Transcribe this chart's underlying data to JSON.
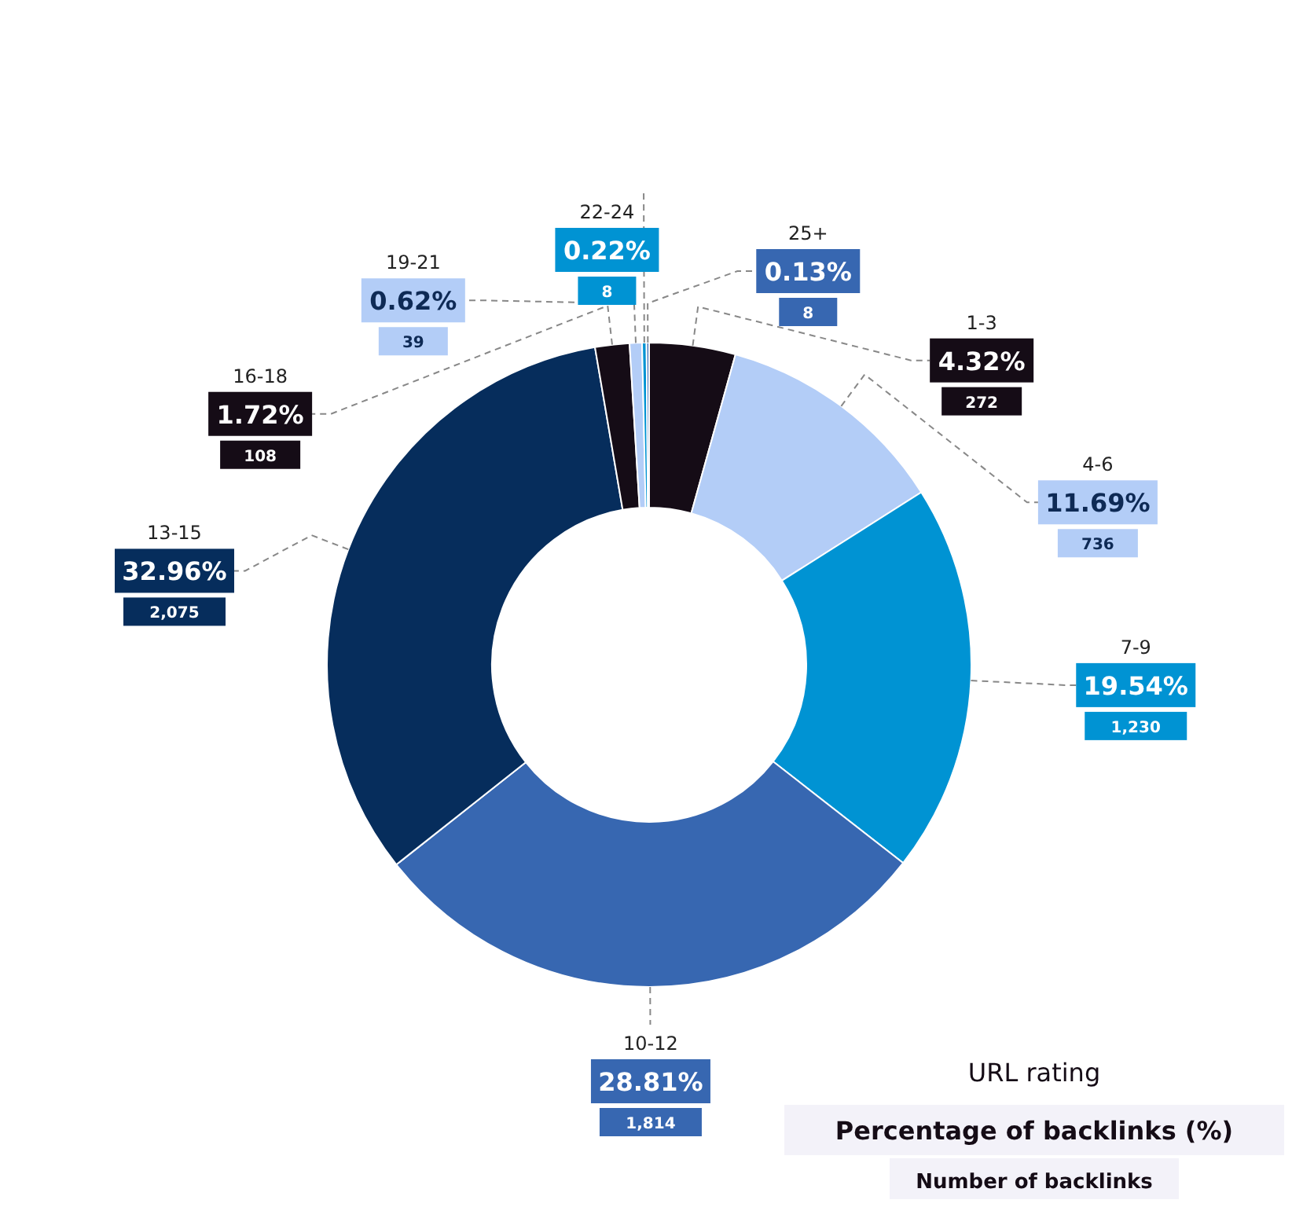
{
  "chart_data": {
    "type": "donut",
    "categories": [
      "1-3",
      "4-6",
      "7-9",
      "10-12",
      "13-15",
      "16-18",
      "19-21",
      "22-24",
      "25+"
    ],
    "values": [
      4.32,
      11.69,
      19.54,
      28.81,
      32.96,
      1.72,
      0.62,
      0.22,
      0.13
    ],
    "value_labels": [
      "4.32%",
      "11.69%",
      "19.54%",
      "28.81%",
      "32.96%",
      "1.72%",
      "0.62%",
      "0.22%",
      "0.13%"
    ],
    "colors": [
      "#150c16",
      "#b3cdf7",
      "#0093d3",
      "#3767b1",
      "#062d5c",
      "#150c16",
      "#b3cdf7",
      "#0093d3",
      "#3767b1"
    ],
    "annotations": [
      {
        "text": "272",
        "x": "1-3"
      },
      {
        "text": "736",
        "x": "4-6"
      },
      {
        "text": "1,230",
        "x": "7-9"
      },
      {
        "text": "1,814",
        "x": "10-12"
      },
      {
        "text": "2,075",
        "x": "13-15"
      },
      {
        "text": "108",
        "x": "16-18"
      },
      {
        "text": "39",
        "x": "19-21"
      },
      {
        "text": "8",
        "x": "22-24"
      },
      {
        "text": "8",
        "x": "25+"
      },
      "URL rating",
      "Percentage of backlinks (%)",
      "Number of backlinks"
    ]
  }
}
